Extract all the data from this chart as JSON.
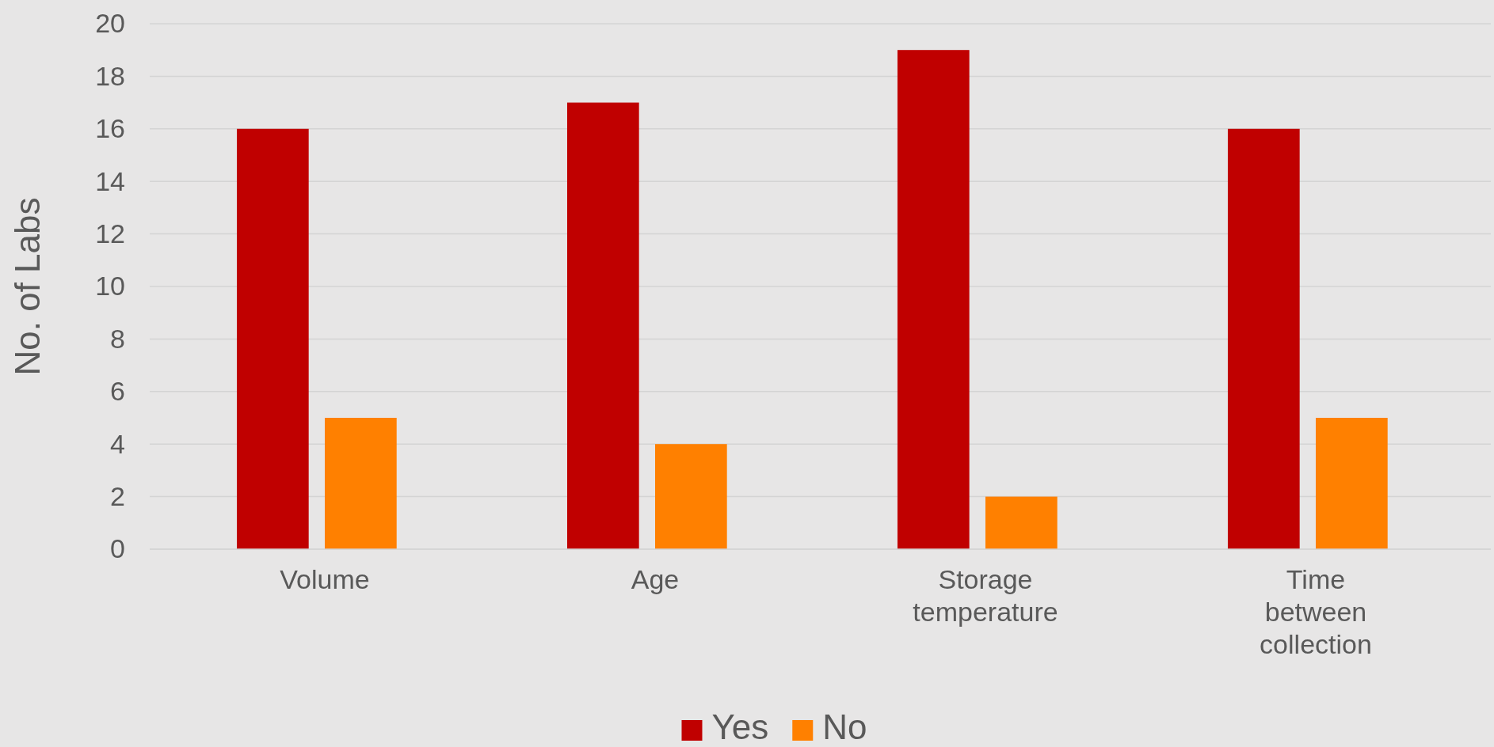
{
  "chart_data": {
    "type": "bar",
    "ylabel": "No. of Labs",
    "categories": [
      "Volume",
      "Age",
      "Storage temperature",
      "Time between collection"
    ],
    "series": [
      {
        "name": "Yes",
        "color": "#c00000",
        "values": [
          16,
          17,
          19,
          16
        ]
      },
      {
        "name": "No",
        "color": "#ff8000",
        "values": [
          5,
          4,
          2,
          5
        ]
      }
    ],
    "ylim": [
      0,
      20
    ],
    "yticks": [
      0,
      2,
      4,
      6,
      8,
      10,
      12,
      14,
      16,
      18,
      20
    ],
    "grid": "y",
    "legend": "bottom"
  }
}
